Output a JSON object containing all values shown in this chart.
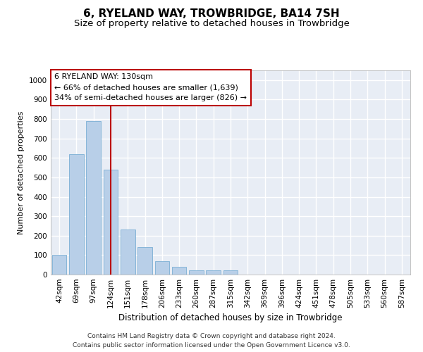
{
  "title": "6, RYELAND WAY, TROWBRIDGE, BA14 7SH",
  "subtitle": "Size of property relative to detached houses in Trowbridge",
  "xlabel": "Distribution of detached houses by size in Trowbridge",
  "ylabel": "Number of detached properties",
  "footer_line1": "Contains HM Land Registry data © Crown copyright and database right 2024.",
  "footer_line2": "Contains public sector information licensed under the Open Government Licence v3.0.",
  "categories": [
    "42sqm",
    "69sqm",
    "97sqm",
    "124sqm",
    "151sqm",
    "178sqm",
    "206sqm",
    "233sqm",
    "260sqm",
    "287sqm",
    "315sqm",
    "342sqm",
    "369sqm",
    "396sqm",
    "424sqm",
    "451sqm",
    "478sqm",
    "505sqm",
    "533sqm",
    "560sqm",
    "587sqm"
  ],
  "values": [
    100,
    620,
    790,
    540,
    230,
    140,
    70,
    40,
    20,
    20,
    20,
    0,
    0,
    0,
    0,
    0,
    0,
    0,
    0,
    0,
    0
  ],
  "bar_color": "#b8cfe8",
  "bar_edge_color": "#7bafd4",
  "background_color": "#e8edf5",
  "grid_color": "#ffffff",
  "vline_x": 3.0,
  "vline_color": "#bb0000",
  "annotation_text": "6 RYELAND WAY: 130sqm\n← 66% of detached houses are smaller (1,639)\n34% of semi-detached houses are larger (826) →",
  "annotation_box_facecolor": "#ffffff",
  "annotation_box_edgecolor": "#bb0000",
  "ylim": [
    0,
    1050
  ],
  "yticks": [
    0,
    100,
    200,
    300,
    400,
    500,
    600,
    700,
    800,
    900,
    1000
  ],
  "title_fontsize": 11,
  "subtitle_fontsize": 9.5,
  "xlabel_fontsize": 8.5,
  "ylabel_fontsize": 8,
  "tick_fontsize": 7.5,
  "annotation_fontsize": 8
}
